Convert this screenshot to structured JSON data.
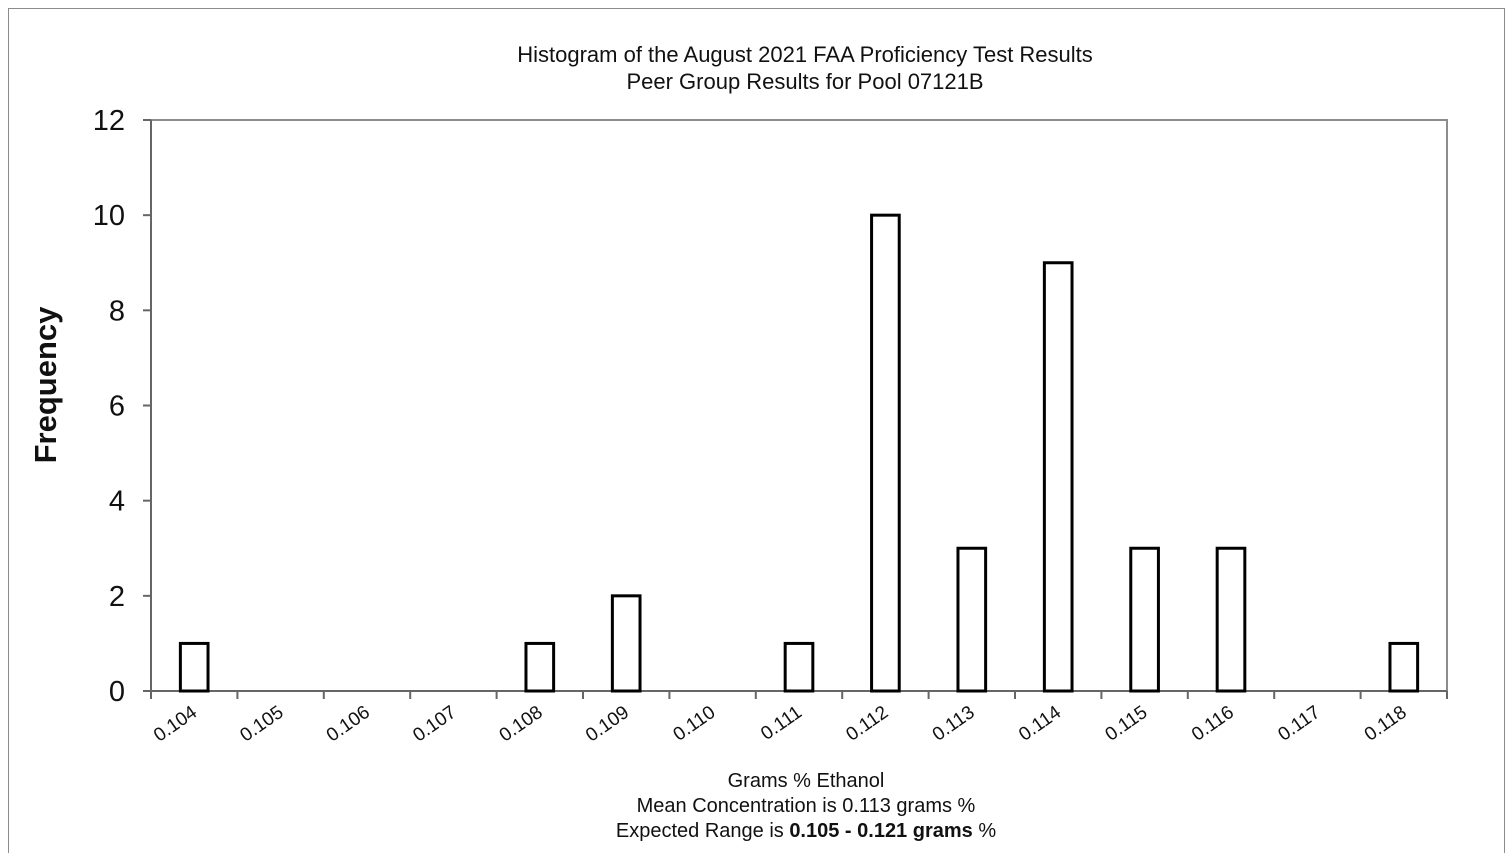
{
  "chart_data": {
    "type": "bar",
    "title": "Histogram of the August 2021 FAA Proficiency Test  Results",
    "subtitle": "Peer Group Results for Pool  07121B",
    "xlabel": "Grams % Ethanol",
    "ylabel": "Frequency",
    "categories": [
      "0.104",
      "0.105",
      "0.106",
      "0.107",
      "0.108",
      "0.109",
      "0.110",
      "0.111",
      "0.112",
      "0.113",
      "0.114",
      "0.115",
      "0.116",
      "0.117",
      "0.118"
    ],
    "values": [
      1,
      0,
      0,
      0,
      1,
      2,
      0,
      1,
      10,
      3,
      9,
      3,
      3,
      0,
      1
    ],
    "ylim": [
      0,
      12
    ],
    "yticks": [
      0,
      2,
      4,
      6,
      8,
      10,
      12
    ],
    "ytick_labels": [
      "0",
      "2",
      "4",
      "6",
      "8",
      "10",
      "12"
    ],
    "grid": false,
    "legend": "none",
    "bar_fill": "#ffffff",
    "bar_stroke": "#000000",
    "axis_color": "#8c8c8c"
  },
  "footer": {
    "mean_line": "Mean Concentration is 0.113 grams %",
    "range_prefix": "Expected Range is ",
    "range_value": "0.105 - 0.121 grams",
    "range_suffix": " %"
  }
}
